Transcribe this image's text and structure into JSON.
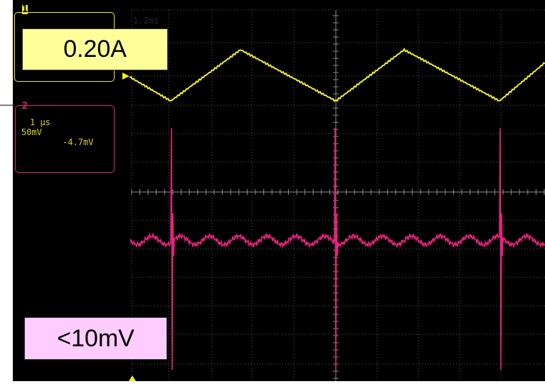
{
  "channel1": {
    "number": "1",
    "color": "#ecec2e",
    "current_label": "0.20A",
    "label_bg": "#ffff99"
  },
  "channel2": {
    "number": "2",
    "color": "#e3237d",
    "timebase": "1 μs",
    "scale": "50mV",
    "offset": "-4.7mV",
    "ripple_label": "<10mV",
    "label_bg": "#ffccff"
  },
  "topline_text": "1.2ms",
  "screen": {
    "background": "#000000",
    "grid_color": "#5a5a5a"
  }
}
